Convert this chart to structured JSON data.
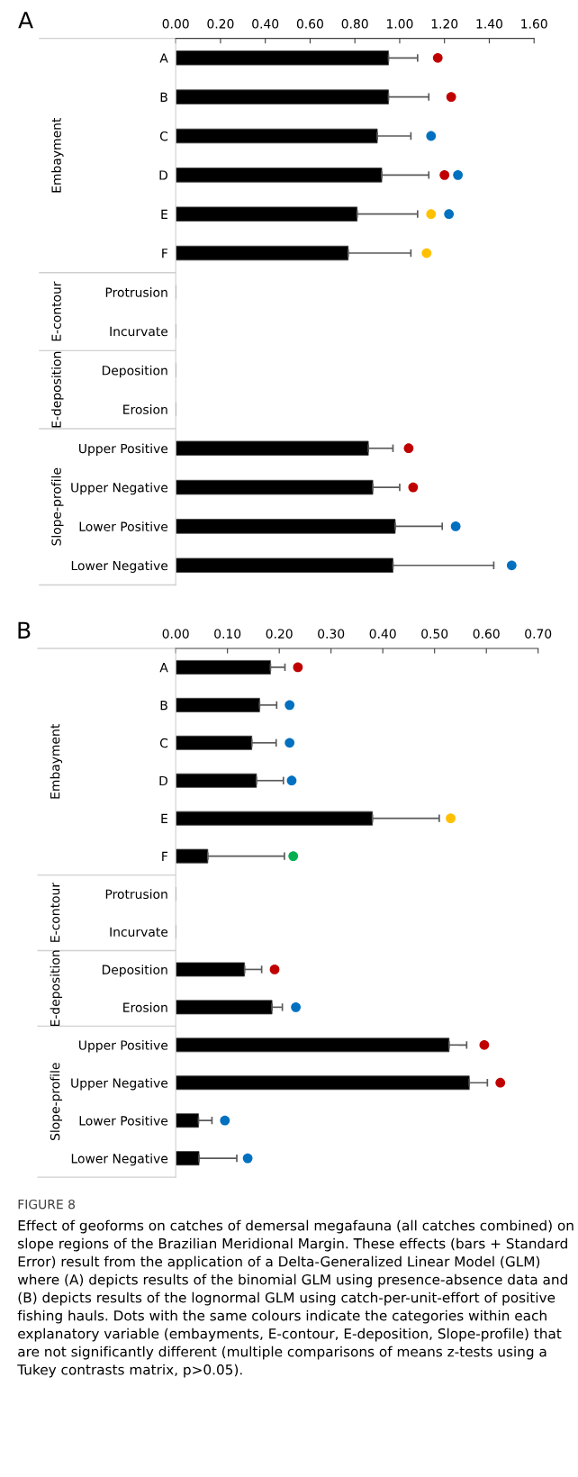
{
  "chart_data": [
    {
      "type": "bar",
      "orientation": "horizontal",
      "title": "A",
      "categories": [
        "A",
        "B",
        "C",
        "D",
        "E",
        "F",
        "Protrusion",
        "Incurvate",
        "Deposition",
        "Erosion",
        "Upper Positive",
        "Upper Negative",
        "Lower Positive",
        "Lower Negative"
      ],
      "xlim": [
        0,
        1.6
      ],
      "xticks": [
        {
          "value": 0,
          "label": "0.00"
        },
        {
          "value": 0.2,
          "label": "0.20"
        },
        {
          "value": 0.4,
          "label": "0.40"
        },
        {
          "value": 0.6,
          "label": "0.60"
        },
        {
          "value": 0.8,
          "label": "0.80"
        },
        {
          "value": 1.0,
          "label": "1.00"
        },
        {
          "value": 1.2,
          "label": "1.20"
        },
        {
          "value": 1.4,
          "label": "1.40"
        },
        {
          "value": 1.6,
          "label": "1.60"
        }
      ],
      "annotations": [
        "Embayment",
        "E-contour",
        "E-deposition",
        "Slope-profile"
      ],
      "grid": false,
      "legend": false,
      "series": [
        {
          "color": "#000000",
          "values": [
            0.95,
            0.95,
            0.9,
            0.92,
            0.81,
            0.77,
            null,
            null,
            null,
            null,
            0.86,
            0.88,
            0.98,
            0.97
          ],
          "errors": [
            [
              0.95,
              1.08
            ],
            [
              0.95,
              1.13
            ],
            [
              0.9,
              1.05
            ],
            [
              0.92,
              1.13
            ],
            [
              0.81,
              1.08
            ],
            [
              0.77,
              1.05
            ],
            null,
            null,
            null,
            null,
            [
              0.86,
              0.97
            ],
            [
              0.88,
              1.0
            ],
            [
              0.98,
              1.19
            ],
            [
              0.97,
              1.42
            ]
          ]
        },
        {
          "type": "scatter",
          "marker": "circle",
          "color": "#c00000",
          "values": [
            1.17,
            1.23,
            null,
            1.2,
            null,
            null,
            null,
            null,
            null,
            null,
            1.04,
            1.06,
            null,
            null
          ]
        },
        {
          "type": "scatter",
          "marker": "circle",
          "color": "#0070c0",
          "values": [
            null,
            null,
            1.14,
            1.26,
            1.22,
            null,
            null,
            null,
            null,
            null,
            null,
            null,
            1.25,
            1.5
          ]
        },
        {
          "type": "scatter",
          "marker": "circle",
          "color": "#ffc000",
          "values": [
            null,
            null,
            null,
            null,
            1.14,
            1.12,
            null,
            null,
            null,
            null,
            null,
            null,
            null,
            null
          ]
        }
      ]
    },
    {
      "type": "bar",
      "orientation": "horizontal",
      "title": "B",
      "categories": [
        "A",
        "B",
        "C",
        "D",
        "E",
        "F",
        "Protrusion",
        "Incurvate",
        "Deposition",
        "Erosion",
        "Upper Positive",
        "Upper Negative",
        "Lower Positive",
        "Lower Negative"
      ],
      "xlim": [
        0,
        0.7
      ],
      "xticks": [
        {
          "value": 0,
          "label": "0.00"
        },
        {
          "value": 0.1,
          "label": "0.10"
        },
        {
          "value": 0.2,
          "label": "0.20"
        },
        {
          "value": 0.3,
          "label": "0.30"
        },
        {
          "value": 0.4,
          "label": "0.40"
        },
        {
          "value": 0.5,
          "label": "0.50"
        },
        {
          "value": 0.6,
          "label": "0.60"
        },
        {
          "value": 0.7,
          "label": "0.70"
        }
      ],
      "annotations": [
        "Embayment",
        "E-contour",
        "E-deposition",
        "Slope-profile",
        "FIGURE 8",
        "Effect of geoforms on catches of demersal megafauna (all catches combined) on slope regions of the Brazilian Meridional Margin. These effects (bars + Standard Error) result from the application of a Delta-Generalized Linear Model (GLM) where (A) depicts results of the binomial GLM using presence-absence data and (B) depicts results of the lognormal GLM using catch-per-unit-effort of positive fishing hauls. Dots with the same colours indicate the categories within each explanatory variable (embayments, E-contour, E-deposition, Slope-profile) that are not significantly different (multiple comparisons of means z-tests using a Tukey contrasts matrix, p>0.05)."
      ],
      "grid": false,
      "legend": false,
      "series": [
        {
          "color": "#000000",
          "values": [
            0.183,
            0.162,
            0.147,
            0.156,
            0.38,
            0.062,
            null,
            null,
            0.133,
            0.186,
            0.528,
            0.567,
            0.044,
            0.045
          ],
          "errors": [
            [
              0.183,
              0.211
            ],
            [
              0.162,
              0.195
            ],
            [
              0.147,
              0.194
            ],
            [
              0.156,
              0.208
            ],
            [
              0.38,
              0.509
            ],
            [
              0.062,
              0.21
            ],
            null,
            null,
            [
              0.133,
              0.166
            ],
            [
              0.186,
              0.206
            ],
            [
              0.528,
              0.562
            ],
            [
              0.567,
              0.602
            ],
            [
              0.044,
              0.07
            ],
            [
              0.045,
              0.118
            ]
          ]
        },
        {
          "type": "scatter",
          "marker": "circle",
          "color": "#c00000",
          "values": [
            0.236,
            null,
            null,
            null,
            null,
            null,
            null,
            null,
            0.191,
            null,
            0.596,
            0.627,
            null,
            null
          ]
        },
        {
          "type": "scatter",
          "marker": "circle",
          "color": "#0070c0",
          "values": [
            null,
            0.22,
            0.22,
            0.224,
            null,
            null,
            null,
            null,
            null,
            0.232,
            null,
            null,
            0.095,
            0.139
          ]
        },
        {
          "type": "scatter",
          "marker": "circle",
          "color": "#ffc000",
          "values": [
            null,
            null,
            null,
            null,
            0.531,
            null,
            null,
            null,
            null,
            null,
            null,
            null,
            null,
            null
          ]
        },
        {
          "type": "scatter",
          "marker": "circle",
          "color": "#00b050",
          "values": [
            null,
            null,
            null,
            null,
            null,
            0.227,
            null,
            null,
            null,
            null,
            null,
            null,
            null,
            null
          ]
        }
      ]
    }
  ]
}
